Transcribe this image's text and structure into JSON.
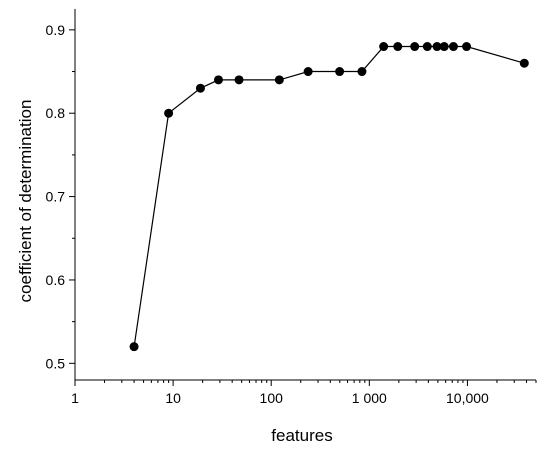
{
  "chart_data": {
    "type": "line",
    "xscale": "log",
    "xlim": [
      1,
      50000
    ],
    "ylim": [
      0.48,
      0.925
    ],
    "xlabel": "features",
    "ylabel": "coefficient of determination",
    "grid": false,
    "x_ticks": [
      {
        "value": 1,
        "label": "1"
      },
      {
        "value": 10,
        "label": "10"
      },
      {
        "value": 100,
        "label": "100"
      },
      {
        "value": 1000,
        "label": "1 000"
      },
      {
        "value": 10000,
        "label": "10,000"
      }
    ],
    "y_ticks": [
      {
        "value": 0.5,
        "label": "0.5"
      },
      {
        "value": 0.6,
        "label": "0.6"
      },
      {
        "value": 0.7,
        "label": "0.7"
      },
      {
        "value": 0.8,
        "label": "0.8"
      },
      {
        "value": 0.9,
        "label": "0.9"
      }
    ],
    "series": [
      {
        "color": "#000000",
        "marker": "circle",
        "points": [
          {
            "x": 4,
            "y": 0.52
          },
          {
            "x": 9,
            "y": 0.8
          },
          {
            "x": 19,
            "y": 0.83
          },
          {
            "x": 29,
            "y": 0.84
          },
          {
            "x": 47,
            "y": 0.84
          },
          {
            "x": 121,
            "y": 0.84
          },
          {
            "x": 238,
            "y": 0.85
          },
          {
            "x": 498,
            "y": 0.85
          },
          {
            "x": 841,
            "y": 0.85
          },
          {
            "x": 1400,
            "y": 0.88
          },
          {
            "x": 1950,
            "y": 0.88
          },
          {
            "x": 2900,
            "y": 0.88
          },
          {
            "x": 3900,
            "y": 0.88
          },
          {
            "x": 4900,
            "y": 0.88
          },
          {
            "x": 5800,
            "y": 0.88
          },
          {
            "x": 7200,
            "y": 0.88
          },
          {
            "x": 9800,
            "y": 0.88
          },
          {
            "x": 38000,
            "y": 0.86
          }
        ]
      }
    ]
  }
}
